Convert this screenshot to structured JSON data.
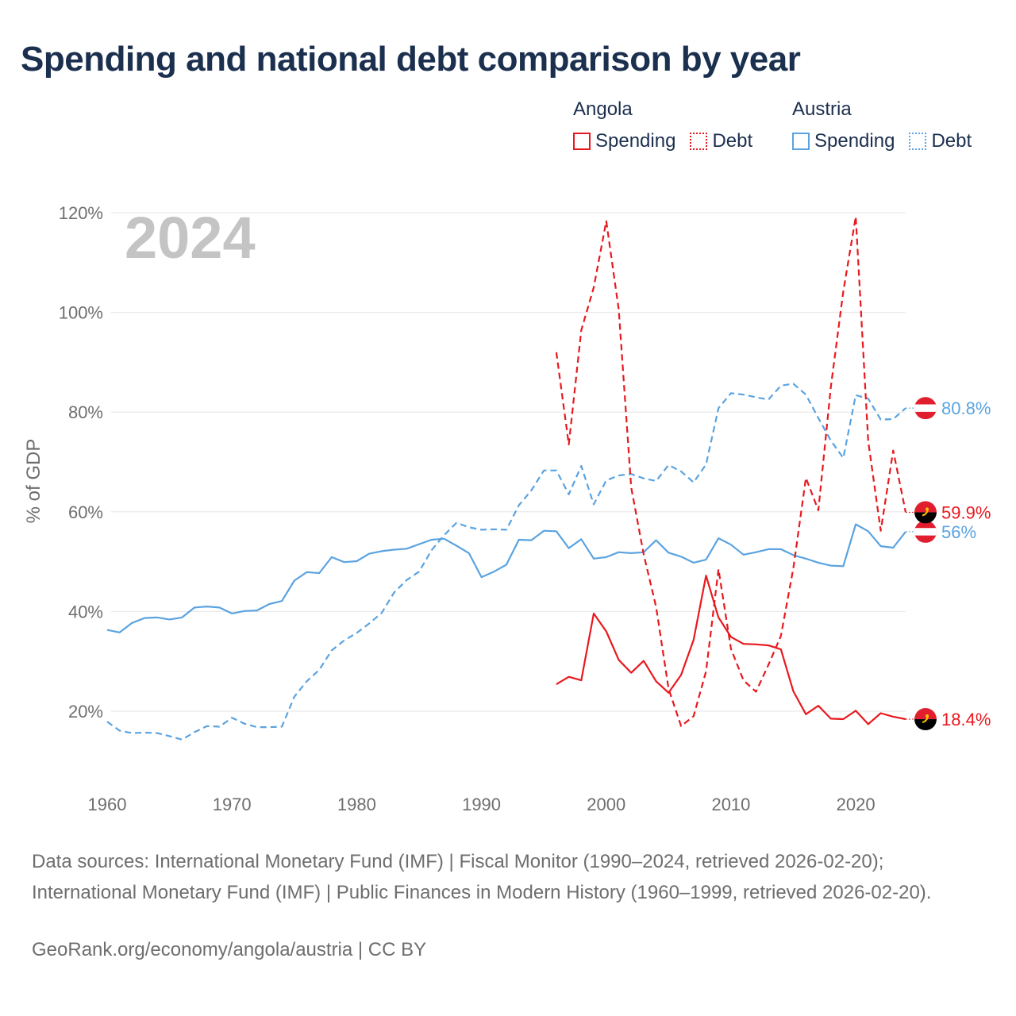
{
  "title": "Spending and national debt comparison by year",
  "legend": {
    "groups": [
      {
        "country": "Angola",
        "spending_label": "Spending",
        "debt_label": "Debt",
        "color": "#e8191e"
      },
      {
        "country": "Austria",
        "spending_label": "Spending",
        "debt_label": "Debt",
        "color": "#5ba3e0"
      }
    ]
  },
  "chart_data": {
    "type": "line",
    "year_watermark": "2024",
    "ylabel": "% of GDP",
    "xlim": [
      1960,
      2024
    ],
    "ylim": [
      10,
      120
    ],
    "x_ticks": [
      1960,
      1970,
      1980,
      1990,
      2000,
      2010,
      2020
    ],
    "y_ticks": [
      20,
      40,
      60,
      80,
      100,
      120
    ],
    "y_tick_labels": [
      "20%",
      "40%",
      "60%",
      "80%",
      "100%",
      "120%"
    ],
    "series": [
      {
        "name": "Austria Debt",
        "country": "Austria",
        "style": "dashed",
        "color": "#5ba3e0",
        "end_label": "80.8%",
        "x": [
          1960,
          1961,
          1962,
          1963,
          1964,
          1965,
          1966,
          1967,
          1968,
          1969,
          1970,
          1971,
          1972,
          1973,
          1974,
          1975,
          1976,
          1977,
          1978,
          1979,
          1980,
          1981,
          1982,
          1983,
          1984,
          1985,
          1986,
          1987,
          1988,
          1989,
          1990,
          1991,
          1992,
          1993,
          1994,
          1995,
          1996,
          1997,
          1998,
          1999,
          2000,
          2001,
          2002,
          2003,
          2004,
          2005,
          2006,
          2007,
          2008,
          2009,
          2010,
          2011,
          2012,
          2013,
          2014,
          2015,
          2016,
          2017,
          2018,
          2019,
          2020,
          2021,
          2022,
          2023,
          2024
        ],
        "values": [
          17.9,
          16.1,
          15.6,
          15.7,
          15.6,
          15.0,
          14.3,
          15.8,
          17.0,
          16.9,
          18.7,
          17.5,
          16.8,
          16.8,
          16.9,
          22.9,
          26.0,
          28.3,
          32.2,
          34.2,
          35.7,
          37.6,
          39.7,
          43.8,
          46.3,
          48.0,
          52.3,
          55.3,
          57.8,
          56.9,
          56.4,
          56.5,
          56.4,
          61.3,
          64.3,
          68.3,
          68.3,
          63.5,
          69.2,
          61.5,
          66.3,
          67.3,
          67.6,
          66.7,
          66.2,
          69.4,
          68.1,
          65.9,
          69.5,
          80.8,
          83.8,
          83.5,
          83.0,
          82.5,
          85.3,
          85.7,
          83.5,
          78.8,
          74.3,
          70.8,
          83.4,
          82.7,
          78.5,
          78.6,
          80.8
        ]
      },
      {
        "name": "Austria Spending",
        "country": "Austria",
        "style": "solid",
        "color": "#5ba3e0",
        "end_label": "56%",
        "x": [
          1960,
          1961,
          1962,
          1963,
          1964,
          1965,
          1966,
          1967,
          1968,
          1969,
          1970,
          1971,
          1972,
          1973,
          1974,
          1975,
          1976,
          1977,
          1978,
          1979,
          1980,
          1981,
          1982,
          1983,
          1984,
          1985,
          1986,
          1987,
          1988,
          1989,
          1990,
          1991,
          1992,
          1993,
          1994,
          1995,
          1996,
          1997,
          1998,
          1999,
          2000,
          2001,
          2002,
          2003,
          2004,
          2005,
          2006,
          2007,
          2008,
          2009,
          2010,
          2011,
          2012,
          2013,
          2014,
          2015,
          2016,
          2017,
          2018,
          2019,
          2020,
          2021,
          2022,
          2023,
          2024
        ],
        "values": [
          36.3,
          35.8,
          37.7,
          38.7,
          38.8,
          38.4,
          38.8,
          40.8,
          41.0,
          40.8,
          39.6,
          40.1,
          40.2,
          41.5,
          42.1,
          46.2,
          47.9,
          47.7,
          50.9,
          49.9,
          50.1,
          51.6,
          52.1,
          52.4,
          52.6,
          53.5,
          54.4,
          54.6,
          53.2,
          51.7,
          46.9,
          48.0,
          49.4,
          54.4,
          54.3,
          56.2,
          56.1,
          52.7,
          54.5,
          50.6,
          50.9,
          51.9,
          51.7,
          51.9,
          54.3,
          51.8,
          51.0,
          49.8,
          50.4,
          54.7,
          53.4,
          51.4,
          51.9,
          52.5,
          52.5,
          51.3,
          50.6,
          49.8,
          49.2,
          49.1,
          57.5,
          56.1,
          53.1,
          52.8,
          56.0
        ]
      },
      {
        "name": "Angola Debt",
        "country": "Angola",
        "style": "dashed",
        "color": "#e8191e",
        "end_label": "59.9%",
        "x": [
          1996,
          1997,
          1998,
          1999,
          2000,
          2001,
          2002,
          2003,
          2004,
          2005,
          2006,
          2007,
          2008,
          2009,
          2010,
          2011,
          2012,
          2013,
          2014,
          2015,
          2016,
          2017,
          2018,
          2019,
          2020,
          2021,
          2022,
          2023,
          2024
        ],
        "values": [
          92.0,
          73.5,
          96.4,
          105.0,
          118.3,
          100.6,
          64.9,
          51.5,
          40.9,
          24.5,
          17.0,
          19.0,
          28.0,
          48.5,
          32.5,
          26.2,
          23.9,
          29.3,
          35.1,
          48.7,
          66.8,
          60.3,
          85.0,
          104.2,
          119.2,
          74.2,
          56.2,
          72.3,
          59.9
        ]
      },
      {
        "name": "Angola Spending",
        "country": "Angola",
        "style": "solid",
        "color": "#e8191e",
        "end_label": "18.4%",
        "x": [
          1996,
          1997,
          1998,
          1999,
          2000,
          2001,
          2002,
          2003,
          2004,
          2005,
          2006,
          2007,
          2008,
          2009,
          2010,
          2011,
          2012,
          2013,
          2014,
          2015,
          2016,
          2017,
          2018,
          2019,
          2020,
          2021,
          2022,
          2023,
          2024
        ],
        "values": [
          25.4,
          26.9,
          26.2,
          39.6,
          36.0,
          30.3,
          27.7,
          30.1,
          26.0,
          23.7,
          27.3,
          34.3,
          47.2,
          38.8,
          34.9,
          33.5,
          33.4,
          33.2,
          32.4,
          24.0,
          19.4,
          21.1,
          18.5,
          18.4,
          20.1,
          17.4,
          19.6,
          18.9,
          18.4
        ]
      }
    ]
  },
  "sources": "Data sources: International Monetary Fund (IMF) | Fiscal Monitor (1990–2024, retrieved 2026-02-20); International Monetary Fund (IMF) | Public Finances in Modern History (1960–1999, retrieved 2026-02-20).",
  "attribution": "GeoRank.org/economy/angola/austria | CC BY"
}
